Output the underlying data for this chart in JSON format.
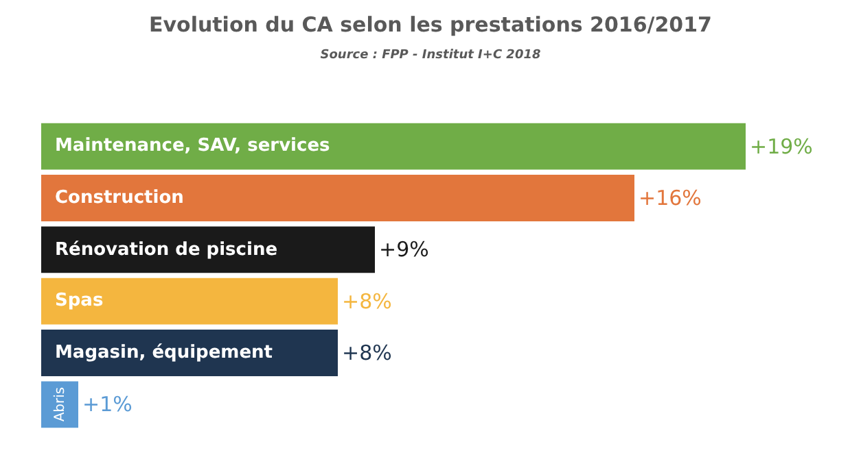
{
  "chart_data": {
    "type": "bar",
    "orientation": "horizontal",
    "title": "Evolution du CA selon les prestations 2016/2017",
    "subtitle": "Source : FPP - Institut I+C 2018",
    "categories": [
      "Maintenance, SAV, services",
      "Construction",
      "Rénovation de piscine",
      "Spas",
      "Magasin, équipement",
      "Abris"
    ],
    "values": [
      19,
      16,
      9,
      8,
      8,
      1
    ],
    "value_labels": [
      "+19%",
      "+16%",
      "+9%",
      "+8%",
      "+8%",
      "+1%"
    ],
    "colors": [
      "#70ad47",
      "#e2763c",
      "#1a1a1a",
      "#f4b63f",
      "#1f3550",
      "#5b9bd5"
    ]
  }
}
